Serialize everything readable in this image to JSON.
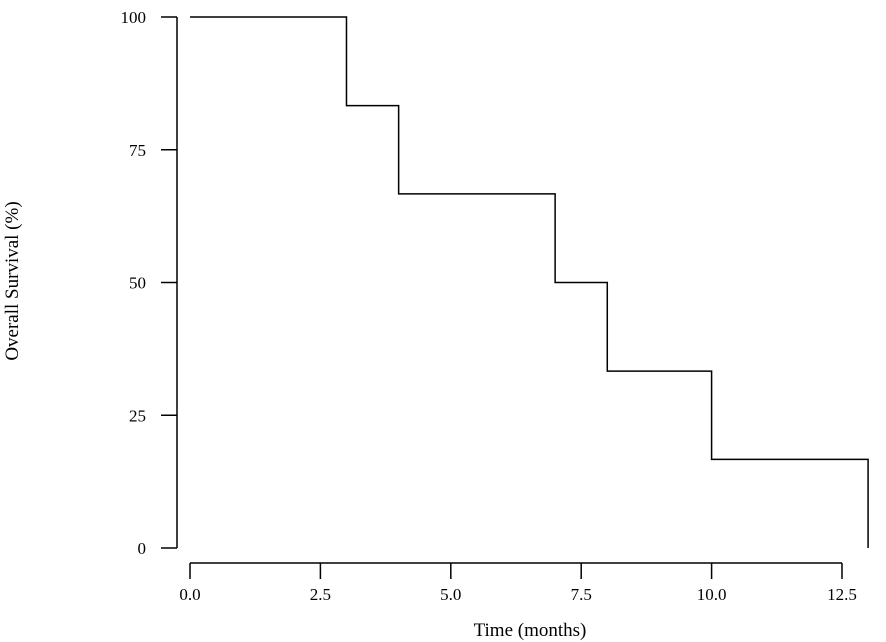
{
  "chart_data": {
    "type": "line",
    "step": true,
    "title": "",
    "xlabel": "Time (months)",
    "ylabel": "Overall Survival  (%)",
    "xlim": [
      0,
      13
    ],
    "ylim": [
      0,
      100
    ],
    "x_ticks": [
      0.0,
      2.5,
      5.0,
      7.5,
      10.0,
      12.5
    ],
    "x_tick_labels": [
      "0.0",
      "2.5",
      "5.0",
      "7.5",
      "10.0",
      "12.5"
    ],
    "y_ticks": [
      0,
      25,
      50,
      75,
      100
    ],
    "y_tick_labels": [
      "0",
      "25",
      "50",
      "75",
      "100"
    ],
    "grid": false,
    "legend": "none",
    "series": [
      {
        "x": [
          0,
          3,
          4,
          7,
          8,
          10,
          13
        ],
        "y": [
          100,
          83.3,
          66.7,
          50,
          33.3,
          16.7,
          0
        ]
      }
    ],
    "colors": {
      "line": "#000000",
      "background": "#ffffff"
    }
  }
}
